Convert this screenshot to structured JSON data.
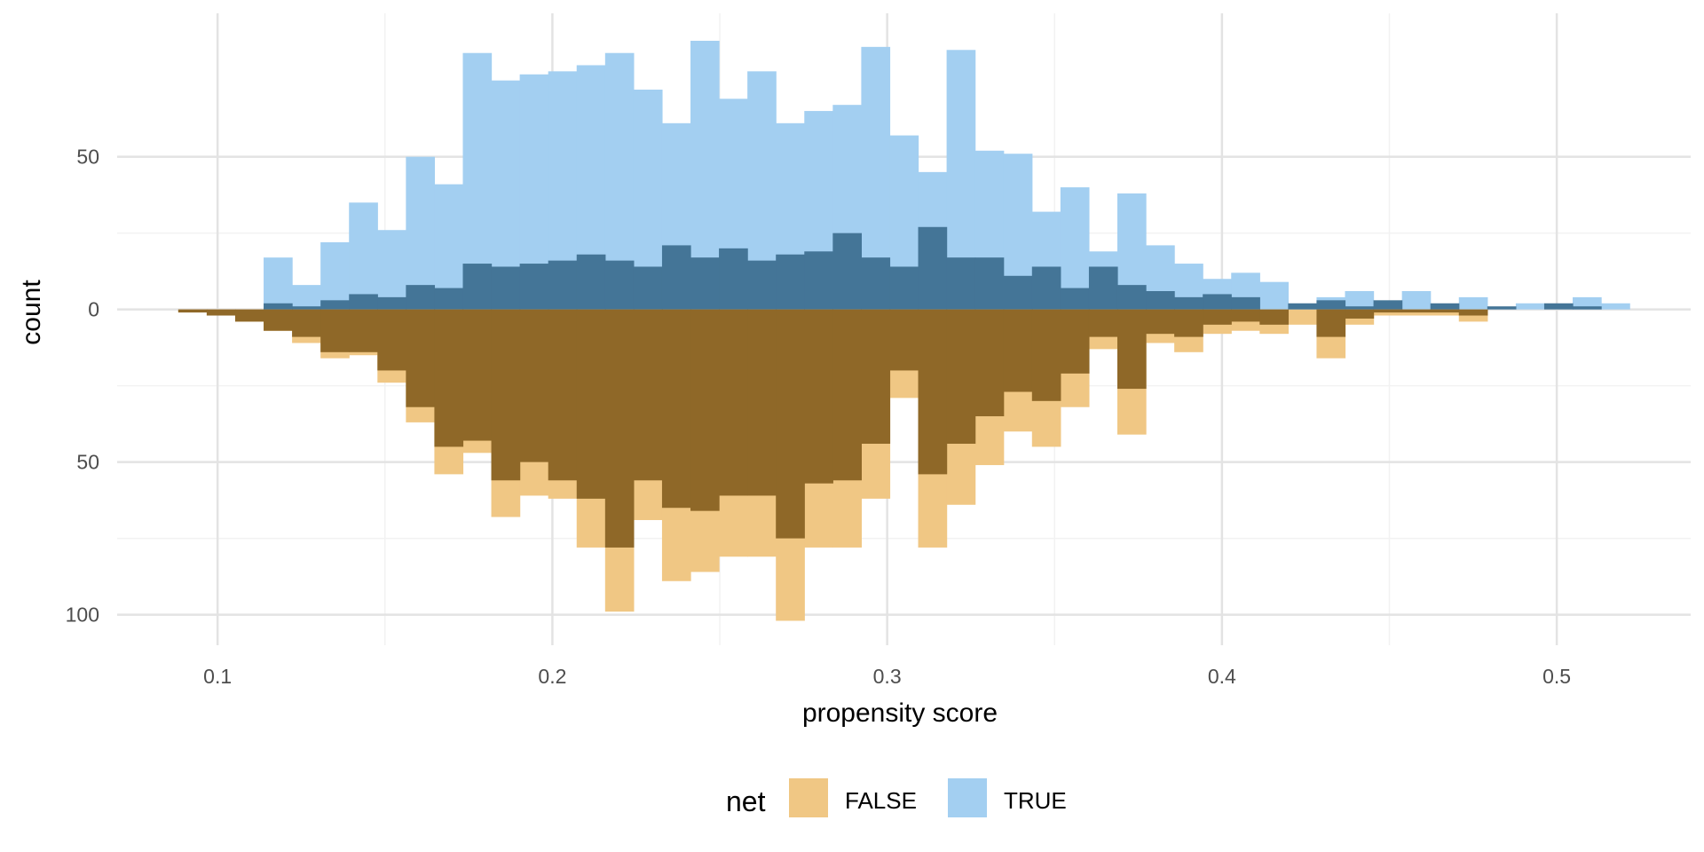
{
  "chart_data": {
    "type": "bar",
    "subtype": "mirrored-histogram",
    "title": "",
    "xlabel": "propensity score",
    "ylabel": "count",
    "xlim": [
      0.07,
      0.54
    ],
    "ylim": [
      -110,
      97
    ],
    "x_ticks": [
      0.1,
      0.2,
      0.3,
      0.4,
      0.5
    ],
    "x_tick_labels": [
      "0.1",
      "0.2",
      "0.3",
      "0.4",
      "0.5"
    ],
    "y_ticks": [
      -100,
      -50,
      0,
      50
    ],
    "y_tick_labels": [
      "100",
      "50",
      "0",
      "50"
    ],
    "grid": true,
    "legend": {
      "title": "net",
      "position": "bottom",
      "entries": [
        {
          "label": "FALSE",
          "color": "#F0C784"
        },
        {
          "label": "TRUE",
          "color": "#A3CFF1"
        }
      ]
    },
    "bin_width": 0.0085,
    "bin_centers": [
      0.0925,
      0.101,
      0.1095,
      0.118,
      0.1265,
      0.135,
      0.1435,
      0.152,
      0.1605,
      0.169,
      0.1775,
      0.186,
      0.1945,
      0.203,
      0.2115,
      0.22,
      0.2285,
      0.237,
      0.2455,
      0.254,
      0.2625,
      0.271,
      0.2795,
      0.288,
      0.2965,
      0.305,
      0.3135,
      0.322,
      0.3305,
      0.339,
      0.3475,
      0.356,
      0.3645,
      0.373,
      0.3815,
      0.39,
      0.3985,
      0.407,
      0.4155,
      0.424,
      0.4325,
      0.441,
      0.4495,
      0.458,
      0.4665,
      0.475,
      0.4835,
      0.492,
      0.5005,
      0.509,
      0.5175
    ],
    "series": [
      {
        "name": "TRUE",
        "direction": "up",
        "color": "#A3CFF1",
        "values": [
          0,
          0,
          0,
          17,
          8,
          22,
          35,
          26,
          50,
          41,
          84,
          75,
          77,
          78,
          80,
          84,
          72,
          61,
          88,
          69,
          78,
          61,
          65,
          67,
          86,
          57,
          45,
          85,
          52,
          51,
          32,
          40,
          19,
          38,
          21,
          15,
          10,
          12,
          9,
          0,
          4,
          6,
          2,
          6,
          0,
          4,
          0,
          2,
          0,
          4,
          2
        ]
      },
      {
        "name": "FALSE",
        "direction": "down",
        "color": "#F0C784",
        "values": [
          1,
          2,
          4,
          7,
          11,
          16,
          15,
          24,
          37,
          54,
          47,
          68,
          61,
          62,
          78,
          99,
          69,
          89,
          86,
          81,
          81,
          102,
          78,
          78,
          62,
          29,
          78,
          64,
          51,
          40,
          45,
          32,
          13,
          41,
          11,
          14,
          8,
          7,
          8,
          5,
          16,
          5,
          2,
          2,
          2,
          4,
          0,
          0,
          0,
          0,
          0
        ]
      },
      {
        "name": "TRUE (overlap)",
        "direction": "up",
        "color": "#447597",
        "values": [
          0,
          0,
          0,
          2,
          1,
          3,
          5,
          4,
          8,
          7,
          15,
          14,
          15,
          16,
          18,
          16,
          14,
          21,
          17,
          20,
          16,
          18,
          19,
          25,
          17,
          14,
          27,
          17,
          17,
          11,
          14,
          7,
          14,
          8,
          6,
          4,
          5,
          4,
          0,
          2,
          3,
          1,
          3,
          0,
          2,
          0,
          1,
          0,
          2,
          1,
          0
        ]
      },
      {
        "name": "FALSE (overlap)",
        "direction": "down",
        "color": "#8F6828",
        "values": [
          1,
          2,
          4,
          7,
          9,
          14,
          14,
          20,
          32,
          45,
          43,
          56,
          50,
          56,
          62,
          78,
          56,
          65,
          66,
          61,
          61,
          75,
          57,
          56,
          44,
          20,
          54,
          44,
          35,
          27,
          30,
          21,
          9,
          26,
          8,
          9,
          5,
          4,
          5,
          0,
          9,
          3,
          1,
          1,
          1,
          2,
          0,
          0,
          0,
          0,
          0
        ]
      }
    ]
  }
}
